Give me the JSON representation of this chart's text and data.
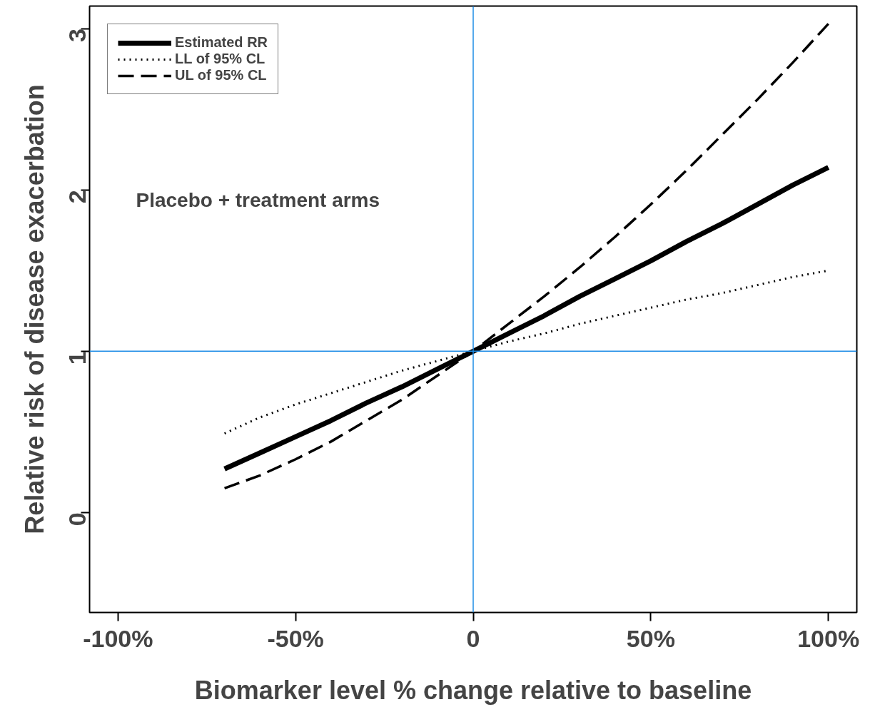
{
  "chart_data": {
    "type": "line",
    "xlabel": "Biomarker level % change relative to baseline",
    "ylabel": "Relative risk of disease exacerbation",
    "x": [
      -70,
      -60,
      -50,
      -40,
      -30,
      -20,
      -10,
      0,
      10,
      20,
      30,
      40,
      50,
      60,
      70,
      80,
      90,
      100
    ],
    "series": [
      {
        "name": "Estimated RR",
        "color": "#000000",
        "line_style": "solid",
        "values": [
          0.27,
          0.37,
          0.47,
          0.57,
          0.68,
          0.78,
          0.89,
          1.0,
          1.11,
          1.22,
          1.34,
          1.45,
          1.56,
          1.68,
          1.79,
          1.91,
          2.03,
          2.14
        ]
      },
      {
        "name": "LL of 95% CL",
        "color": "#000000",
        "line_style": "dotted",
        "values": [
          0.49,
          0.59,
          0.67,
          0.74,
          0.81,
          0.88,
          0.94,
          1.0,
          1.06,
          1.11,
          1.17,
          1.22,
          1.27,
          1.32,
          1.36,
          1.41,
          1.46,
          1.5
        ]
      },
      {
        "name": "UL of 95% CL",
        "color": "#000000",
        "line_style": "dashed",
        "values": [
          0.15,
          0.23,
          0.33,
          0.44,
          0.57,
          0.7,
          0.85,
          1.0,
          1.17,
          1.34,
          1.52,
          1.71,
          1.91,
          2.12,
          2.34,
          2.56,
          2.79,
          3.03
        ]
      }
    ],
    "xlim": [
      -108,
      108
    ],
    "ylim": [
      -0.62,
      3.14
    ],
    "xticks": [
      {
        "value": -100,
        "label": "-100%"
      },
      {
        "value": -50,
        "label": "-50%"
      },
      {
        "value": 0,
        "label": "0"
      },
      {
        "value": 50,
        "label": "50%"
      },
      {
        "value": 100,
        "label": "100%"
      }
    ],
    "yticks": [
      0,
      1,
      2,
      3
    ],
    "ref_lines": [
      {
        "axis": "x",
        "value": 0,
        "color": "#1e8ce6"
      },
      {
        "axis": "y",
        "value": 1,
        "color": "#1e8ce6"
      }
    ],
    "annotations": [
      "Placebo + treatment arms"
    ],
    "grid": false,
    "legend": "top left",
    "marker": "none"
  }
}
